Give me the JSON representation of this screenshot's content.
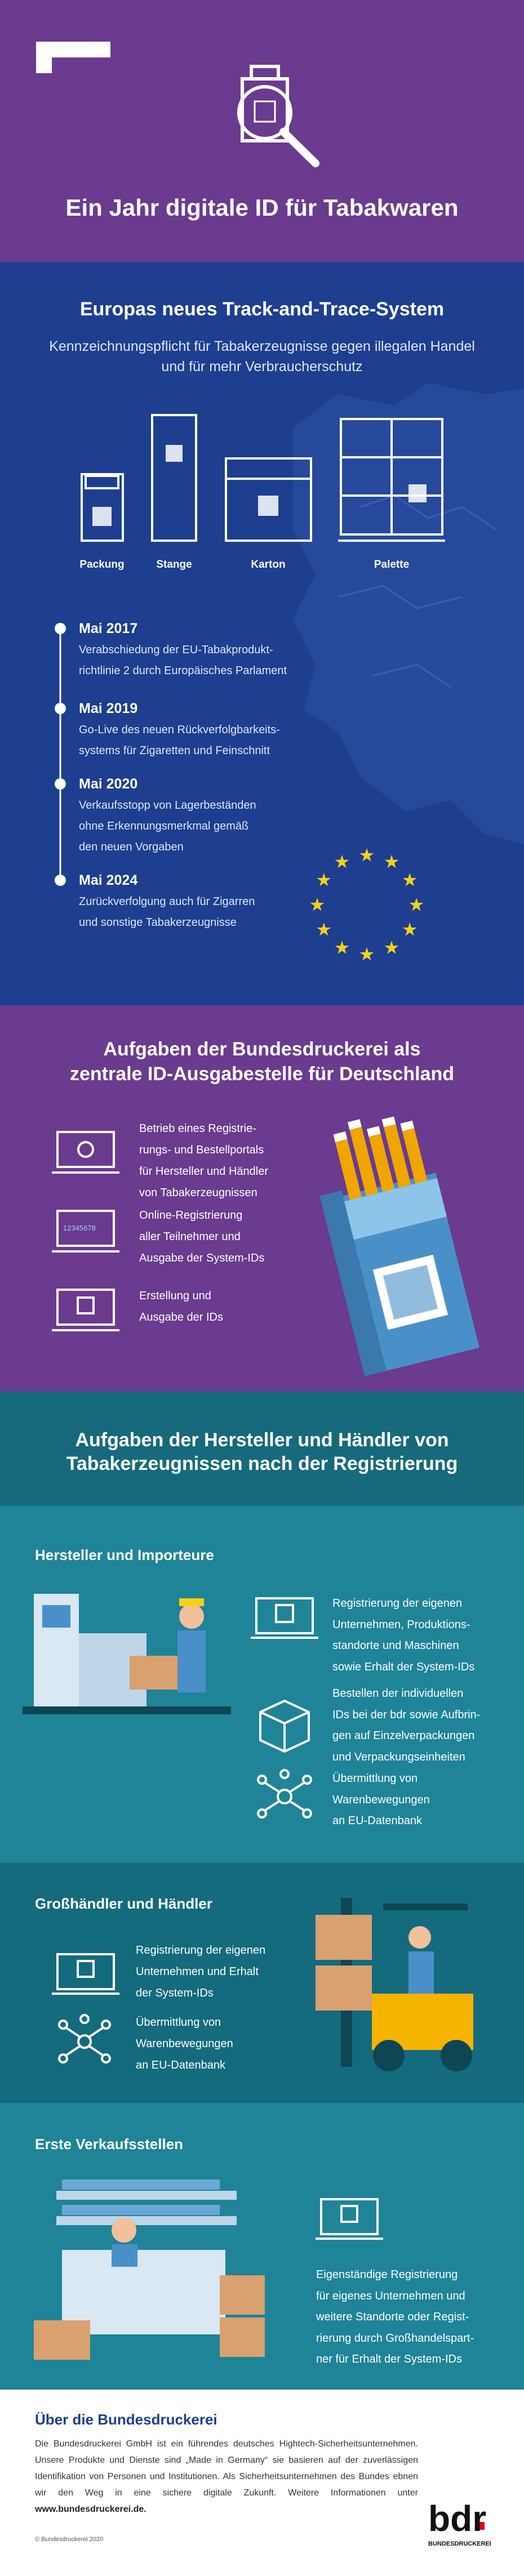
{
  "header": {
    "title": "Ein Jahr digitale ID für Tabakwaren"
  },
  "track_trace": {
    "title": "Europas neues Track-and-Trace-System",
    "subtitle_lines": [
      "Kennzeichnungspflicht für Tabakerzeugnisse gegen illegalen Handel",
      "und für mehr Verbraucherschutz"
    ],
    "packaging": [
      "Packung",
      "Stange",
      "Karton",
      "Palette"
    ],
    "timeline": [
      {
        "date": "Mai 2017",
        "lines": [
          "Verabschiedung der EU-Tabakprodukt-",
          "richtlinie 2 durch Europäisches Parlament"
        ]
      },
      {
        "date": "Mai 2019",
        "lines": [
          "Go-Live des neuen Rückverfolgbarkeits-",
          "systems für Zigaretten und Feinschnitt"
        ]
      },
      {
        "date": "Mai 2020",
        "lines": [
          "Verkaufsstopp von Lagerbeständen",
          "ohne Erkennungsmerkmal gemäß",
          "den neuen Vorgaben"
        ]
      },
      {
        "date": "Mai 2024",
        "lines": [
          "Zurückverfolgung auch für Zigarren",
          "und sonstige Tabakerzeugnisse"
        ]
      }
    ]
  },
  "bundesdruckerei_tasks": {
    "title_lines": [
      "Aufgaben der Bundesdruckerei als",
      "zentrale ID-Ausgabestelle für Deutschland"
    ],
    "items": [
      {
        "lines": [
          "Betrieb eines Registrie-",
          "rungs- und Bestellportals",
          "für Hersteller und Händler",
          "von Tabakerzeugnissen"
        ]
      },
      {
        "lines": [
          "Online-Registrierung",
          "aller Teilnehmer und",
          "Ausgabe der System-IDs"
        ],
        "screen_text": "12345678"
      },
      {
        "lines": [
          "Erstellung und",
          "Ausgabe der IDs"
        ]
      }
    ]
  },
  "manufacturer_tasks": {
    "title_lines": [
      "Aufgaben der Hersteller und Händler von",
      "Tabakerzeugnissen nach der Registrierung"
    ],
    "groups": [
      {
        "heading": "Hersteller und Importeure",
        "items": [
          {
            "lines": [
              "Registrierung der eigenen",
              "Unternehmen, Produktions-",
              "standorte und Maschinen",
              "sowie Erhalt der System-IDs"
            ]
          },
          {
            "lines": [
              "Bestellen der individuellen",
              "IDs bei der bdr sowie Aufbrin-",
              "gen auf Einzelverpackungen",
              "und Verpackungseinheiten"
            ]
          },
          {
            "lines": [
              "Übermittlung von",
              "Warenbewegungen",
              "an EU-Datenbank"
            ]
          }
        ]
      },
      {
        "heading": "Großhändler und Händler",
        "items": [
          {
            "lines": [
              "Registrierung der eigenen",
              "Unternehmen und Erhalt",
              "der System-IDs"
            ]
          },
          {
            "lines": [
              "Übermittlung von",
              "Warenbewegungen",
              "an EU-Datenbank"
            ]
          }
        ]
      },
      {
        "heading": "Erste Verkaufsstellen",
        "items": [
          {
            "lines": [
              "Eigenständige Registrierung",
              "für eigenes Unternehmen und",
              "weitere Standorte oder Regist-",
              "rierung durch Großhandelspart-",
              "ner für Erhalt der System-IDs"
            ]
          }
        ]
      }
    ]
  },
  "about": {
    "title": "Über die Bundesdruckerei",
    "text": "Die Bundesdruckerei GmbH ist ein führendes deutsches Hightech-Sicherheitsunternehmen. Unsere Produkte und Dienste sind „Made in Germany“ sie basieren auf der zuverlässigen Identifikation von Personen und Institutionen. Als Sicherheitsunternehmen des Bundes ebnen wir den Weg in eine sichere digitale Zukunft. Weitere Informationen unter",
    "link": "www.bundesdruckerei.de.",
    "copyright": "© Bundesdruckerei 2020",
    "logo_wordmark": "bdr",
    "logo_name": "BUNDESDRUCKEREI"
  }
}
